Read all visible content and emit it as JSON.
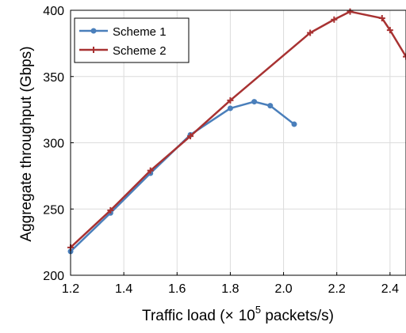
{
  "chart_data": {
    "type": "line",
    "title": "",
    "xlabel": {
      "prefix": "Traffic load (",
      "times": "×",
      "base": "10",
      "exponent": "5",
      "suffix": " packets/s)"
    },
    "ylabel": "Aggregate throughput (Gbps)",
    "xlim": [
      1.2,
      2.46
    ],
    "ylim": [
      200,
      400
    ],
    "xticks": [
      1.2,
      1.4,
      1.6,
      1.8,
      2.0,
      2.2,
      2.4
    ],
    "xtick_labels": [
      "1.2",
      "1.4",
      "1.6",
      "1.8",
      "2.0",
      "2.2",
      "2.4"
    ],
    "yticks": [
      200,
      250,
      300,
      350,
      400
    ],
    "ytick_labels": [
      "200",
      "250",
      "300",
      "350",
      "400"
    ],
    "grid": true,
    "legend_position": "top-left",
    "series": [
      {
        "name": "Scheme 1",
        "color": "#4a7fbb",
        "marker": "circle",
        "x": [
          1.2,
          1.35,
          1.5,
          1.65,
          1.8,
          1.89,
          1.95,
          2.04
        ],
        "y": [
          218,
          247,
          277,
          306,
          326,
          331,
          328,
          314
        ]
      },
      {
        "name": "Scheme 2",
        "color": "#a83232",
        "marker": "plus",
        "x": [
          1.2,
          1.35,
          1.5,
          1.65,
          1.8,
          2.1,
          2.19,
          2.25,
          2.37,
          2.4,
          2.46
        ],
        "y": [
          221,
          249,
          279,
          305,
          332,
          383,
          393,
          399,
          394,
          385,
          365
        ]
      }
    ]
  }
}
